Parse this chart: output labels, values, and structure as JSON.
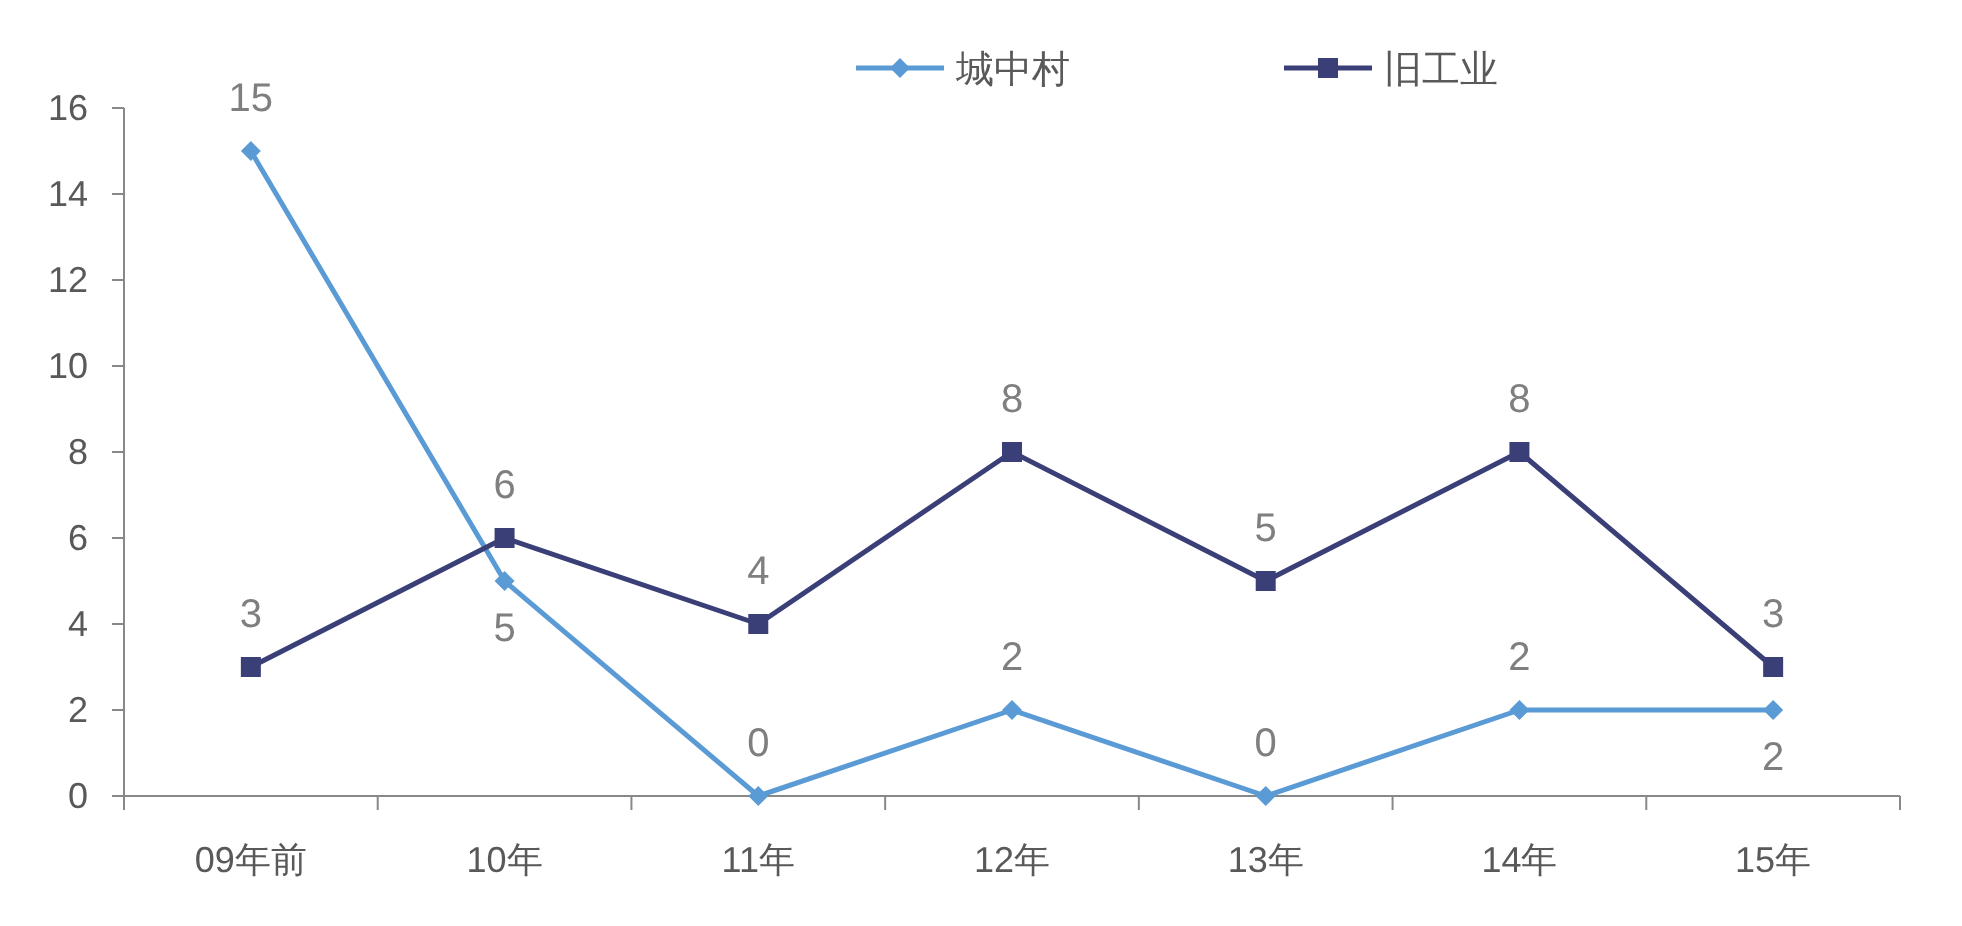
{
  "chart_data": {
    "type": "line",
    "categories": [
      "09年前",
      "10年",
      "11年",
      "12年",
      "13年",
      "14年",
      "15年"
    ],
    "series": [
      {
        "name": "城中村",
        "color": "#5b9bd5",
        "marker": "diamond",
        "values": [
          15,
          5,
          0,
          2,
          0,
          2,
          2
        ]
      },
      {
        "name": "旧工业",
        "color": "#3b3f77",
        "marker": "square",
        "values": [
          3,
          6,
          4,
          8,
          5,
          8,
          3
        ]
      }
    ],
    "ylim": [
      0,
      16
    ],
    "yticks": [
      0,
      2,
      4,
      6,
      8,
      10,
      12,
      14,
      16
    ],
    "data_labels": true,
    "legend": "top"
  }
}
